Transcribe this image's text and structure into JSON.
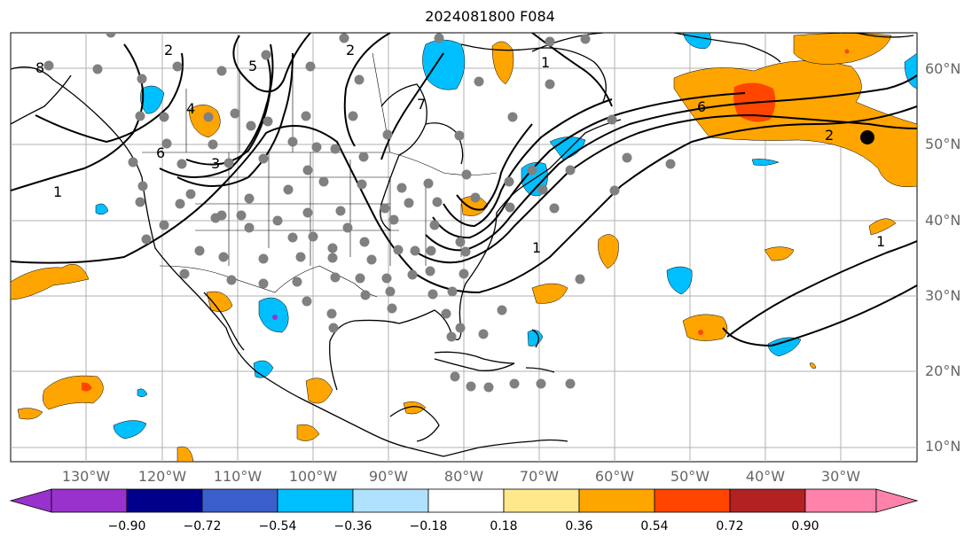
{
  "title": "2024081800 F084",
  "lat_labels": [
    "60°N",
    "50°N",
    "40°N",
    "30°N",
    "20°N",
    "10°N"
  ],
  "lon_labels": [
    "130°W",
    "120°W",
    "110°W",
    "100°W",
    "90°W",
    "80°W",
    "70°W",
    "60°W",
    "50°W",
    "40°W",
    "30°W"
  ],
  "colorbar": {
    "ticks": [
      "−0.90",
      "−0.72",
      "−0.54",
      "−0.36",
      "−0.18",
      "0.18",
      "0.36",
      "0.54",
      "0.72",
      "0.90"
    ],
    "colors": [
      "#9932cc",
      "#00008b",
      "#3a5fcd",
      "#00bfff",
      "#b0e2ff",
      "#ffffff",
      "#ffe88c",
      "#ffa500",
      "#ff4500",
      "#b22222",
      "#ff82ab"
    ]
  },
  "contour_labels": [
    "1",
    "2",
    "3",
    "4",
    "5",
    "6",
    "7",
    "8",
    "1",
    "2",
    "6",
    "1",
    "2",
    "1"
  ],
  "colors": {
    "ocean_pos": "#ffa500",
    "strong_pos": "#ff4500",
    "neg": "#00bfff",
    "station": "#808080"
  }
}
